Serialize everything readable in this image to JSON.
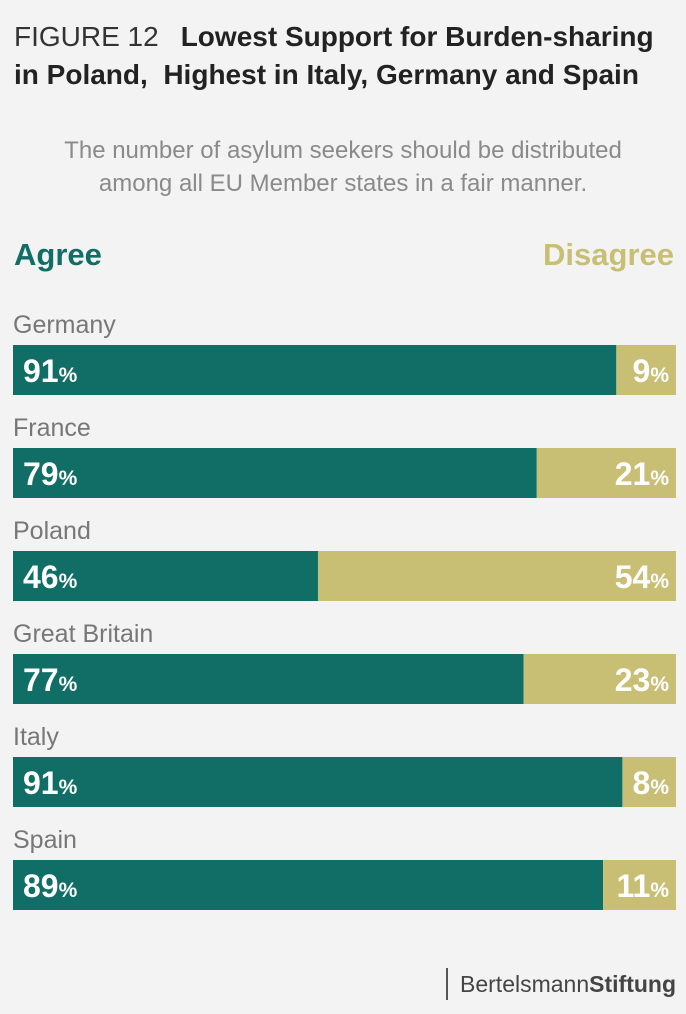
{
  "figure_label": "FIGURE 12",
  "title_line1": "Lowest Support for Burden-sharing",
  "title_line2": "in Poland,  Highest in Italy, Germany and Spain",
  "subtitle_line1": "The number of asylum seekers should be distributed",
  "subtitle_line2": "among all EU Member states in a fair manner.",
  "legend": {
    "agree": "Agree",
    "disagree": "Disagree"
  },
  "colors": {
    "agree": "#106e67",
    "disagree": "#c8bf75",
    "label": "#777777"
  },
  "logo": {
    "part1": "Bertelsmann",
    "part2": "Stiftung"
  },
  "chart_data": {
    "type": "bar",
    "orientation": "horizontal",
    "stacked": true,
    "normalized_to_100": true,
    "categories": [
      "Germany",
      "France",
      "Poland",
      "Great Britain",
      "Italy",
      "Spain"
    ],
    "series": [
      {
        "name": "Agree",
        "values": [
          91,
          79,
          46,
          77,
          91,
          89
        ]
      },
      {
        "name": "Disagree",
        "values": [
          9,
          21,
          54,
          23,
          8,
          11
        ]
      }
    ],
    "unit": "%",
    "legend_position": "top",
    "grid": false
  }
}
